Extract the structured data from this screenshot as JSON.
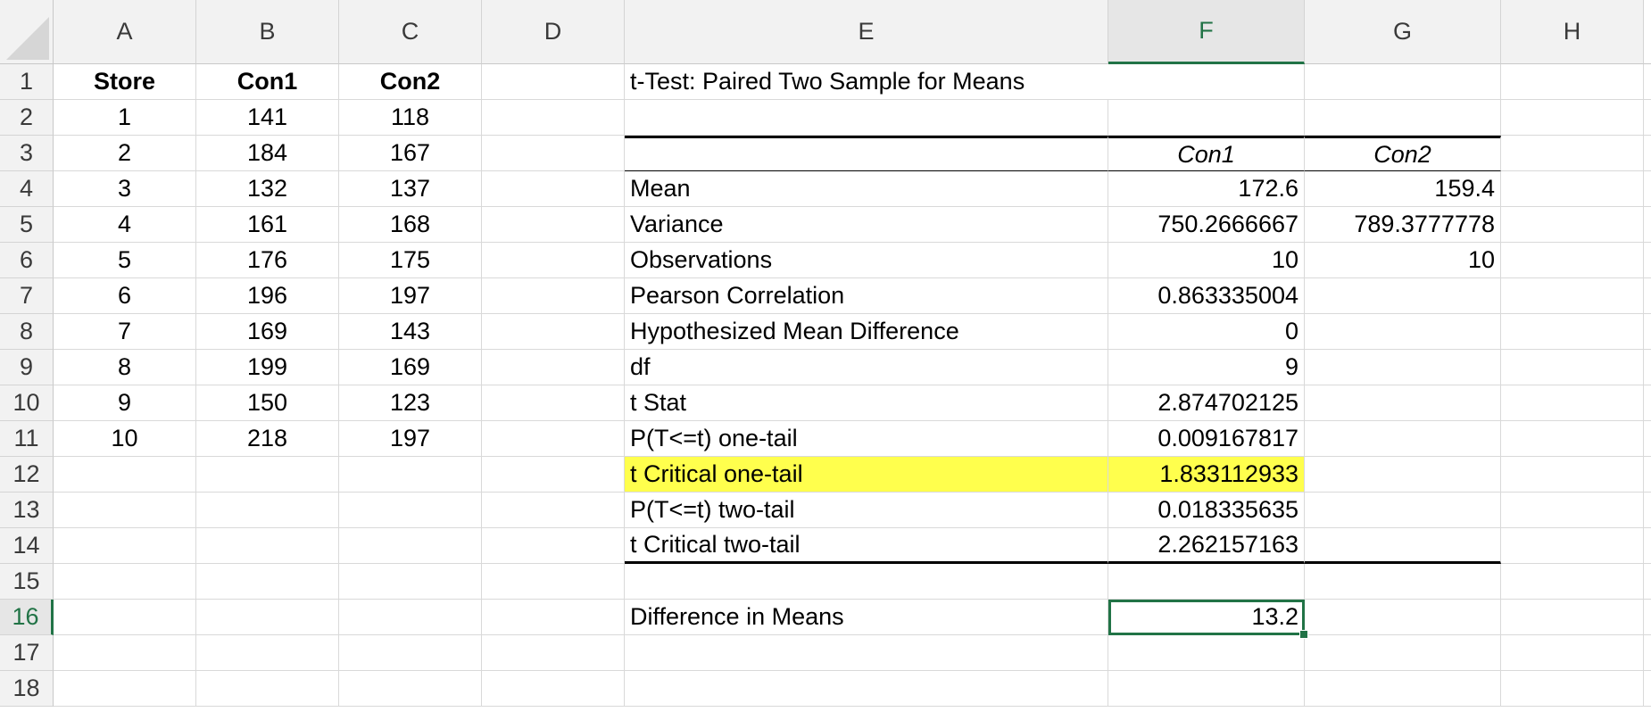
{
  "columns": [
    "A",
    "B",
    "C",
    "D",
    "E",
    "F",
    "G",
    "H"
  ],
  "rows": [
    "1",
    "2",
    "3",
    "4",
    "5",
    "6",
    "7",
    "8",
    "9",
    "10",
    "11",
    "12",
    "13",
    "14",
    "15",
    "16",
    "17",
    "18"
  ],
  "data_table": {
    "headers": [
      "Store",
      "Con1",
      "Con2"
    ],
    "rows": [
      [
        "1",
        "141",
        "118"
      ],
      [
        "2",
        "184",
        "167"
      ],
      [
        "3",
        "132",
        "137"
      ],
      [
        "4",
        "161",
        "168"
      ],
      [
        "5",
        "176",
        "175"
      ],
      [
        "6",
        "196",
        "197"
      ],
      [
        "7",
        "169",
        "143"
      ],
      [
        "8",
        "199",
        "169"
      ],
      [
        "9",
        "150",
        "123"
      ],
      [
        "10",
        "218",
        "197"
      ]
    ]
  },
  "ttest": {
    "title": "t-Test: Paired Two Sample for Means",
    "col_headers": [
      "Con1",
      "Con2"
    ],
    "rows": [
      {
        "label": "Mean",
        "con1": "172.6",
        "con2": "159.4"
      },
      {
        "label": "Variance",
        "con1": "750.2666667",
        "con2": "789.3777778"
      },
      {
        "label": "Observations",
        "con1": "10",
        "con2": "10"
      },
      {
        "label": "Pearson Correlation",
        "con1": "0.863335004",
        "con2": ""
      },
      {
        "label": "Hypothesized Mean Difference",
        "con1": "0",
        "con2": ""
      },
      {
        "label": "df",
        "con1": "9",
        "con2": ""
      },
      {
        "label": "t Stat",
        "con1": "2.874702125",
        "con2": ""
      },
      {
        "label": "P(T<=t) one-tail",
        "con1": "0.009167817",
        "con2": ""
      },
      {
        "label": "t Critical one-tail",
        "con1": "1.833112933",
        "con2": ""
      },
      {
        "label": "P(T<=t) two-tail",
        "con1": "0.018335635",
        "con2": ""
      },
      {
        "label": "t Critical two-tail",
        "con1": "2.262157163",
        "con2": ""
      }
    ],
    "highlight_color": "#ffff4d"
  },
  "difference": {
    "label": "Difference in Means",
    "value": "13.2"
  },
  "selection": {
    "cell": "F16",
    "accent_color": "#217346"
  }
}
